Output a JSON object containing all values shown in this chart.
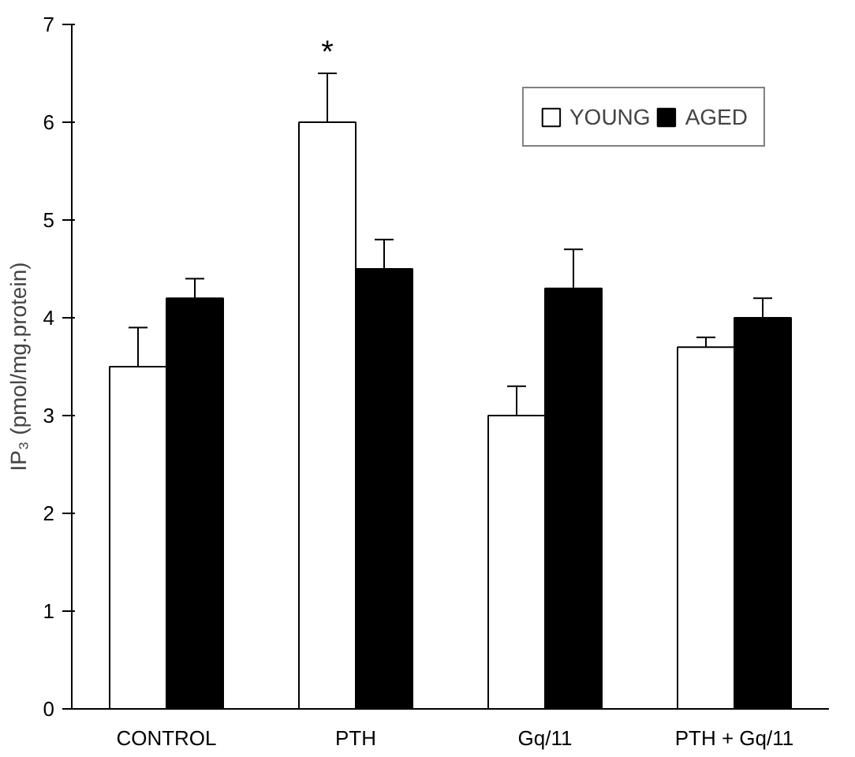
{
  "chart_data": {
    "type": "bar",
    "ylabel": "IP₃ (pmol/mg.protein)",
    "categories": [
      "CONTROL",
      "PTH",
      "Gq/11",
      "PTH + Gq/11"
    ],
    "series": [
      {
        "name": "YOUNG",
        "color": "#ffffff",
        "values": [
          3.5,
          6.0,
          3.0,
          3.7
        ],
        "errors": [
          0.4,
          0.5,
          0.3,
          0.1
        ]
      },
      {
        "name": "AGED",
        "color": "#000000",
        "values": [
          4.2,
          4.5,
          4.3,
          4.0
        ],
        "errors": [
          0.2,
          0.3,
          0.4,
          0.2
        ]
      }
    ],
    "ylim": [
      0,
      7
    ],
    "yticks": [
      0,
      1,
      2,
      3,
      4,
      5,
      6,
      7
    ],
    "grid": false,
    "legend": "top right",
    "annotations": [
      "*"
    ]
  }
}
